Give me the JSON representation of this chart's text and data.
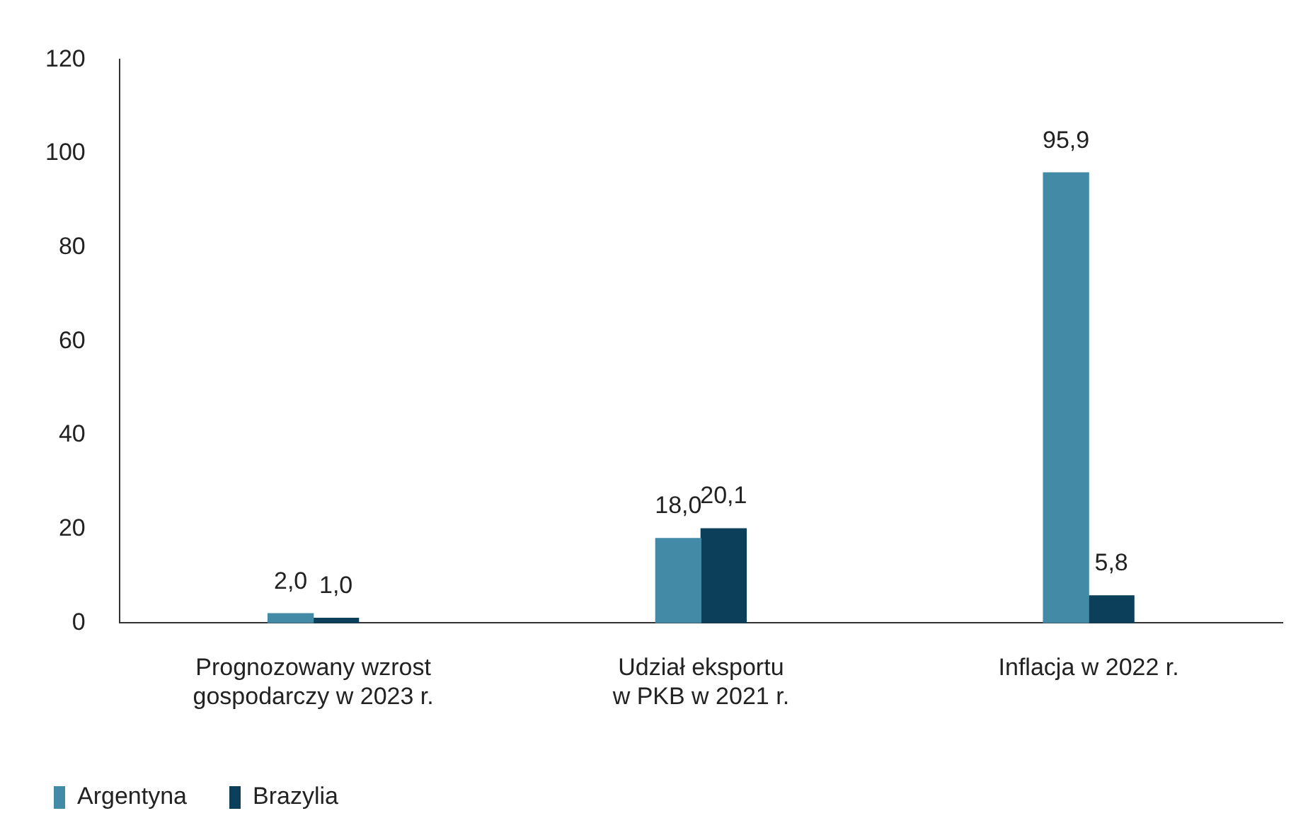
{
  "chart_data": {
    "type": "bar",
    "categories": [
      "Prognozowany wzrost\ngospodarczy w 2023 r.",
      "Udział eksportu\nw PKB w 2021 r.",
      "Inflacja w 2022 r."
    ],
    "series": [
      {
        "name": "Argentyna",
        "color": "#428aa6",
        "values": [
          2.0,
          18.0,
          95.9
        ],
        "value_labels": [
          "2,0",
          "18,0",
          "95,9"
        ]
      },
      {
        "name": "Brazylia",
        "color": "#0b3f5a",
        "values": [
          1.0,
          20.1,
          5.8
        ],
        "value_labels": [
          "1,0",
          "20,1",
          "5,8"
        ]
      }
    ],
    "ylim": [
      0,
      120
    ],
    "yticks": [
      0,
      20,
      40,
      60,
      80,
      100,
      120
    ],
    "grid": false,
    "legend": "bottom left"
  }
}
